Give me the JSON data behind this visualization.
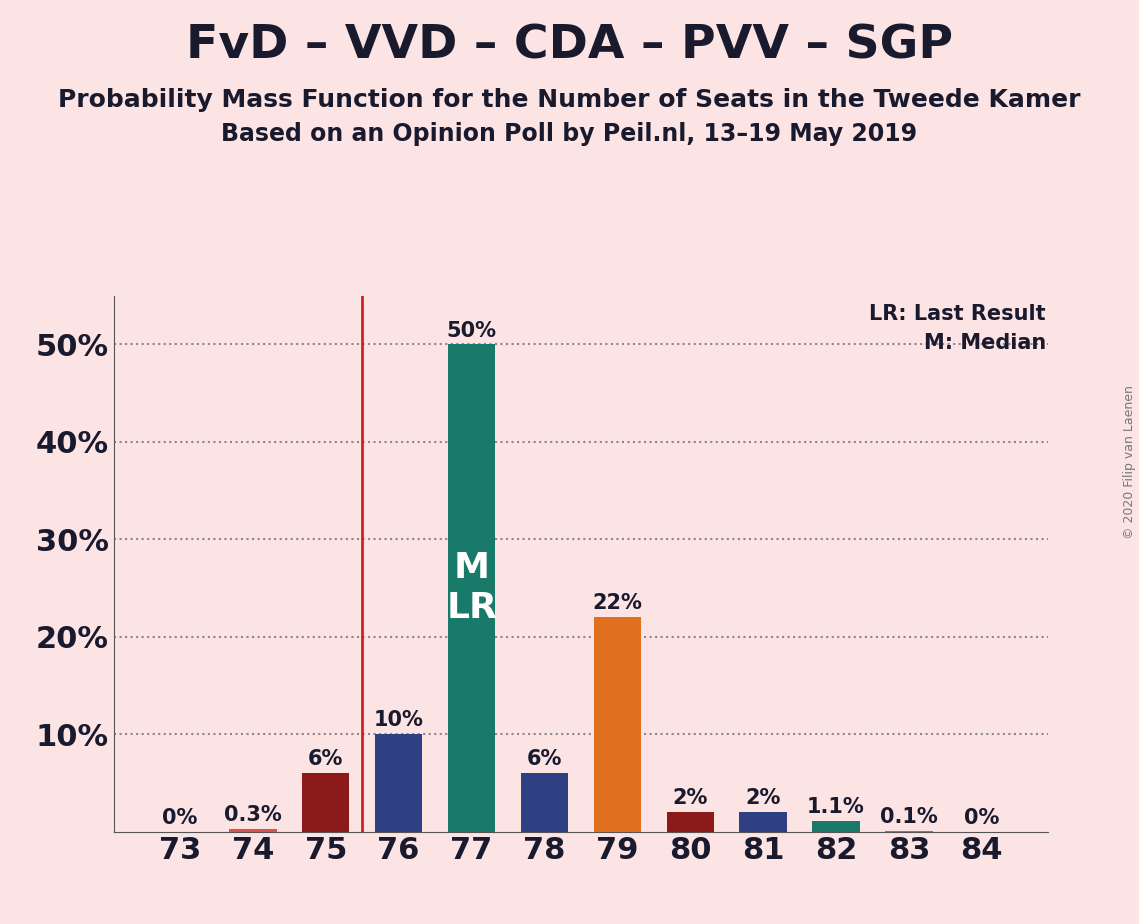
{
  "title": "FvD – VVD – CDA – PVV – SGP",
  "subtitle1": "Probability Mass Function for the Number of Seats in the Tweede Kamer",
  "subtitle2": "Based on an Opinion Poll by Peil.nl, 13–19 May 2019",
  "copyright": "© 2020 Filip van Laenen",
  "categories": [
    73,
    74,
    75,
    76,
    77,
    78,
    79,
    80,
    81,
    82,
    83,
    84
  ],
  "values": [
    0.0,
    0.3,
    6.0,
    10.0,
    50.0,
    6.0,
    22.0,
    2.0,
    2.0,
    1.1,
    0.1,
    0.0
  ],
  "bar_colors": [
    "#d9534f",
    "#d9534f",
    "#8b1a1a",
    "#2e3f82",
    "#1a7a6a",
    "#2e3f82",
    "#e07020",
    "#8b1a1a",
    "#2e3f82",
    "#1a7a6a",
    "#d9534f",
    "#d9534f"
  ],
  "labels": [
    "0%",
    "0.3%",
    "6%",
    "10%",
    "50%",
    "6%",
    "22%",
    "2%",
    "2%",
    "1.1%",
    "0.1%",
    "0%"
  ],
  "background_color": "#fce4e4",
  "legend_lr": "LR: Last Result",
  "legend_m": "M: Median",
  "bar_width": 0.65,
  "label_inside_bar_77": "M\nLR",
  "title_fontsize": 34,
  "subtitle_fontsize": 18,
  "axis_fontsize": 22,
  "label_fontsize": 15,
  "inside_label_fontsize": 26
}
